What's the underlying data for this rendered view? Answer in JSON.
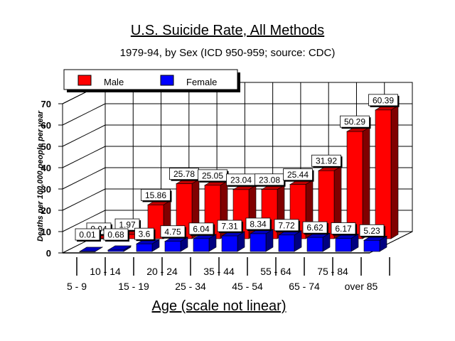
{
  "chart_data": {
    "type": "bar",
    "title": "U.S. Suicide Rate, All Methods",
    "subtitle": "1979-94, by Sex (ICD 950-959; source: CDC)",
    "xlabel": "Age (scale not linear)",
    "ylabel": "Deaths per 100,000 people per year",
    "ylim": [
      0,
      70
    ],
    "yticks": [
      "0",
      "10",
      "20",
      "30",
      "40",
      "50",
      "60",
      "70"
    ],
    "legend_position": "top-left",
    "categories": [
      "5 - 9",
      "10 - 14",
      "15 - 19",
      "20 - 24",
      "25 - 34",
      "35 - 44",
      "45 - 54",
      "55 - 64",
      "65 - 74",
      "75 - 84",
      "over 85"
    ],
    "series": [
      {
        "name": "Male",
        "color": "#ff0000",
        "values": [
          0.04,
          1.97,
          15.86,
          25.78,
          25.05,
          23.04,
          23.08,
          25.44,
          31.92,
          50.29,
          60.39
        ],
        "labels": [
          "0.04",
          "1.97",
          "15.86",
          "25.78",
          "25.05",
          "23.04",
          "23.08",
          "25.44",
          "31.92",
          "50.29",
          "60.39"
        ]
      },
      {
        "name": "Female",
        "color": "#0000ff",
        "values": [
          0.01,
          0.68,
          3.6,
          4.75,
          6.04,
          7.31,
          8.34,
          7.72,
          6.62,
          6.17,
          5.23
        ],
        "labels": [
          "0.01",
          "0.68",
          "3.6",
          "4.75",
          "6.04",
          "7.31",
          "8.34",
          "7.72",
          "6.62",
          "6.17",
          "5.23"
        ]
      }
    ]
  }
}
